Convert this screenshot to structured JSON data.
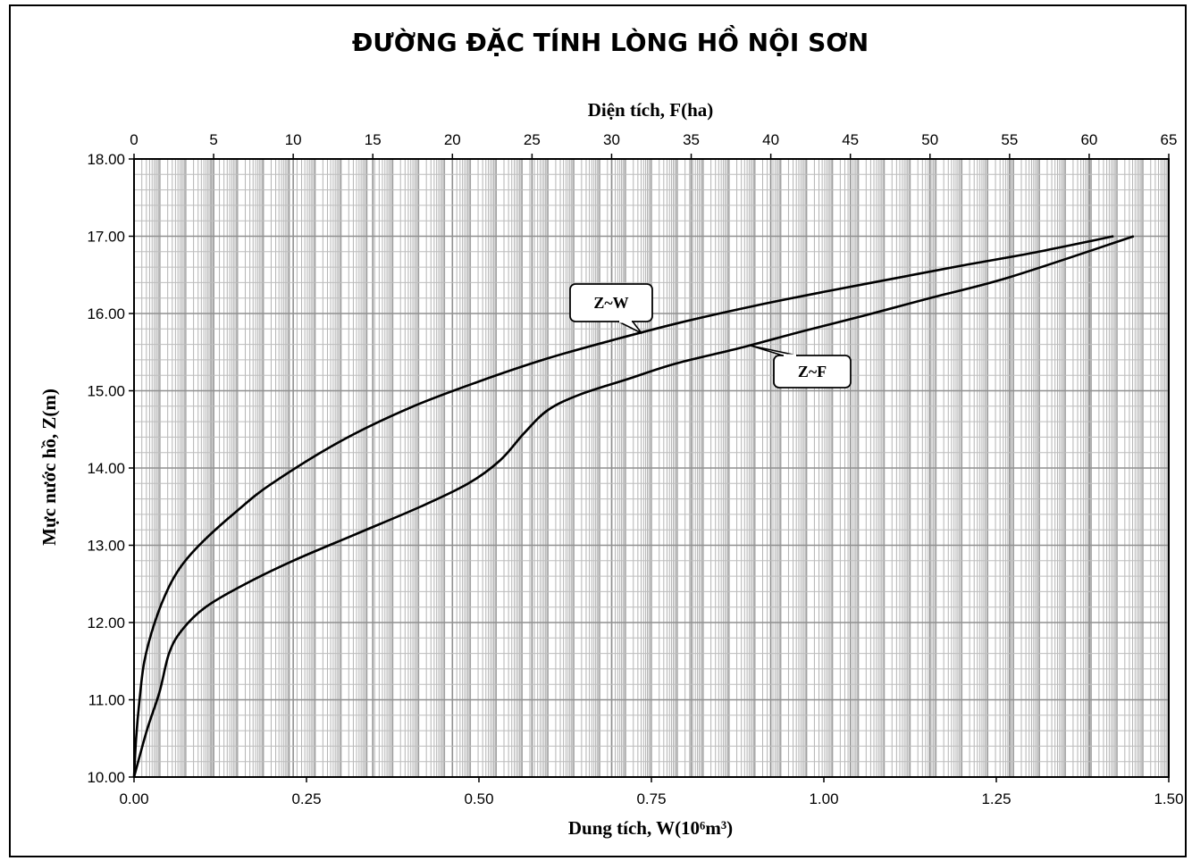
{
  "chart_data": {
    "type": "line",
    "title": "ĐƯỜNG ĐẶC TÍNH LÒNG HỒ NỘI SƠN",
    "xlabel_bottom": "Dung tích, W(10⁶m³)",
    "xlabel_top": "Diện tích, F(ha)",
    "ylabel": "Mực nước hồ, Z(m)",
    "xlim_bottom": [
      0,
      1.5
    ],
    "xlim_top": [
      0,
      65
    ],
    "ylim": [
      10,
      18
    ],
    "grid": true,
    "x_bottom_ticks": [
      "0.00",
      "0.25",
      "0.50",
      "0.75",
      "1.00",
      "1.25",
      "1.50"
    ],
    "x_top_ticks": [
      "0",
      "5",
      "10",
      "15",
      "20",
      "25",
      "30",
      "35",
      "40",
      "45",
      "50",
      "55",
      "60",
      "65"
    ],
    "y_ticks": [
      "10.00",
      "11.00",
      "12.00",
      "13.00",
      "14.00",
      "15.00",
      "16.00",
      "17.00",
      "18.00"
    ],
    "series": [
      {
        "name": "Z~W",
        "axis": "bottom",
        "x": [
          0,
          0.003,
          0.008,
          0.015,
          0.03,
          0.05,
          0.07,
          0.1,
          0.15,
          0.2,
          0.3,
          0.4,
          0.5,
          0.6,
          0.7,
          0.8,
          0.9,
          1.0,
          1.1,
          1.2,
          1.3,
          1.42
        ],
        "y": [
          10.0,
          10.5,
          11.0,
          11.5,
          12.0,
          12.45,
          12.75,
          13.05,
          13.45,
          13.8,
          14.35,
          14.78,
          15.12,
          15.42,
          15.67,
          15.9,
          16.1,
          16.28,
          16.45,
          16.62,
          16.78,
          17.0
        ]
      },
      {
        "name": "Z~F",
        "axis": "top",
        "x": [
          0,
          0.8,
          1.6,
          2.2,
          3.0,
          4.5,
          7,
          10,
          14,
          18,
          21,
          23,
          24.5,
          26,
          28,
          31,
          34,
          38,
          42,
          46,
          50,
          55,
          62.8
        ],
        "y": [
          10.0,
          10.6,
          11.1,
          11.6,
          11.9,
          12.2,
          12.5,
          12.8,
          13.15,
          13.5,
          13.8,
          14.1,
          14.45,
          14.75,
          14.95,
          15.15,
          15.35,
          15.55,
          15.77,
          15.98,
          16.2,
          16.47,
          17.0
        ]
      }
    ],
    "annotations": [
      {
        "text": "Z~W",
        "series": "Z~W"
      },
      {
        "text": "Z~F",
        "series": "Z~F"
      }
    ]
  }
}
